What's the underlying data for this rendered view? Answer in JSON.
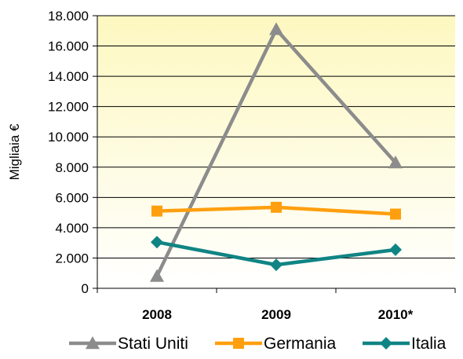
{
  "chart_data": {
    "type": "line",
    "title": "",
    "xlabel": "",
    "ylabel": "Migliaia €",
    "categories": [
      "2008",
      "2009",
      "2010*"
    ],
    "ylim": [
      0,
      18000
    ],
    "y_ticks": [
      0,
      2000,
      4000,
      6000,
      8000,
      10000,
      12000,
      14000,
      16000,
      18000
    ],
    "y_tick_labels": [
      "0",
      "2.000",
      "4.000",
      "6.000",
      "8.000",
      "10.000",
      "12.000",
      "14.000",
      "16.000",
      "18.000"
    ],
    "grid": true,
    "legend_position": "bottom",
    "background_gradient": [
      "#fdf8c0",
      "#ffffff"
    ],
    "series": [
      {
        "name": "Stati Uniti",
        "color": "#8c8c8c",
        "marker": "triangle",
        "values": [
          800,
          17100,
          8300
        ]
      },
      {
        "name": "Germania",
        "color": "#ff9f0f",
        "marker": "square",
        "values": [
          5100,
          5350,
          4900
        ]
      },
      {
        "name": "Italia",
        "color": "#108484",
        "marker": "diamond",
        "values": [
          3050,
          1550,
          2550
        ]
      }
    ]
  }
}
